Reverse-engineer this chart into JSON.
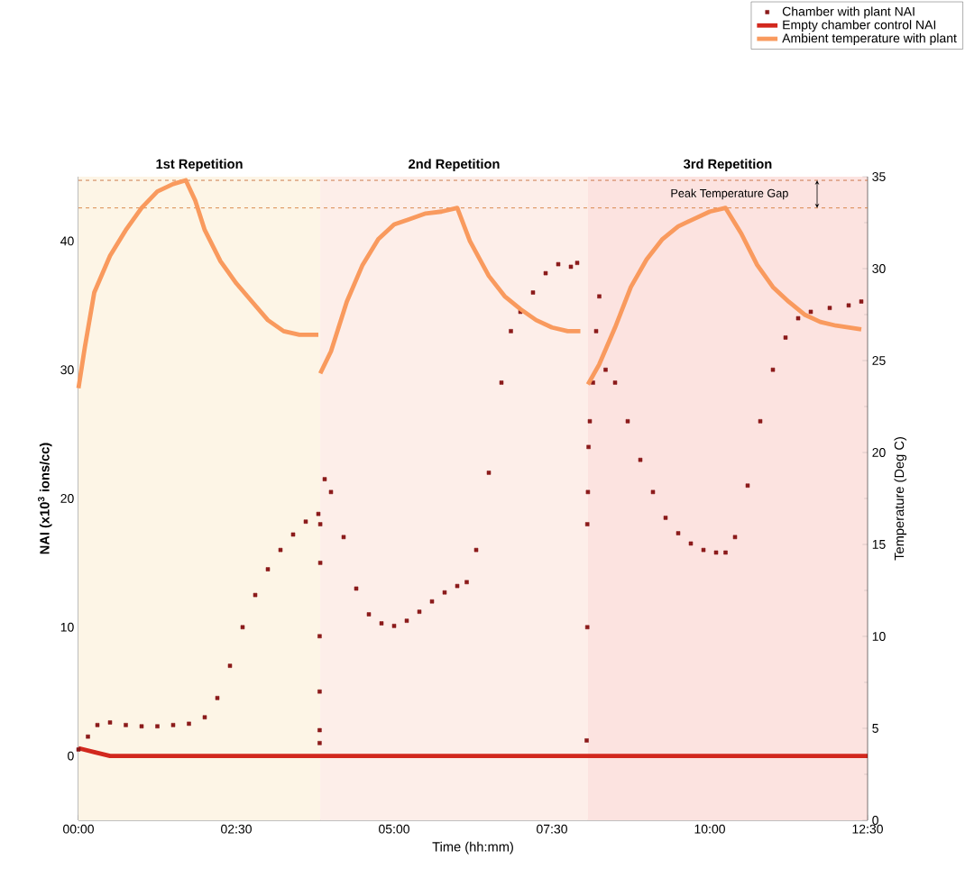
{
  "chart_data": {
    "type": "scatter",
    "xlabel": "Time (hh:mm)",
    "ylabel": "NAI (x10$^{3}$ ions/cc)",
    "y2label": "Temperature (Deg C)",
    "xlim": [
      0,
      12.5
    ],
    "xticks": [
      {
        "value": 0,
        "label": "00:00"
      },
      {
        "value": 2.5,
        "label": "02:30"
      },
      {
        "value": 5,
        "label": "05:00"
      },
      {
        "value": 7.5,
        "label": "07:30"
      },
      {
        "value": 10,
        "label": "10:00"
      },
      {
        "value": 12.5,
        "label": "12:30"
      }
    ],
    "ylim": [
      -5,
      45
    ],
    "yticks": [
      0,
      10,
      20,
      30,
      40
    ],
    "y2lim": [
      0,
      35
    ],
    "y2ticks": [
      0,
      5,
      10,
      15,
      20,
      25,
      30,
      35
    ],
    "legend": "top right",
    "series": [
      {
        "name": "Chamber with plant NAI",
        "color": "#8b1a1a",
        "marker": "square",
        "x": [
          0,
          0.15,
          0.3,
          0.5,
          0.75,
          1.0,
          1.25,
          1.5,
          1.75,
          2.0,
          2.2,
          2.4,
          2.6,
          2.8,
          3.0,
          3.2,
          3.4,
          3.6,
          3.8,
          3.82,
          3.82,
          3.82,
          3.82,
          3.83,
          3.83,
          3.9,
          4.0,
          4.2,
          4.4,
          4.6,
          4.8,
          5.0,
          5.2,
          5.4,
          5.6,
          5.8,
          6.0,
          6.15,
          6.3,
          6.5,
          6.7,
          6.85,
          7.0,
          7.2,
          7.4,
          7.6,
          7.8,
          7.9,
          8.05,
          8.06,
          8.06,
          8.07,
          8.08,
          8.1,
          8.15,
          8.2,
          8.25,
          8.35,
          8.5,
          8.7,
          8.9,
          9.1,
          9.3,
          9.5,
          9.7,
          9.9,
          10.1,
          10.25,
          10.4,
          10.6,
          10.8,
          11.0,
          11.2,
          11.4,
          11.6,
          11.9,
          12.2,
          12.4
        ],
        "values": [
          0.5,
          1.5,
          2.4,
          2.6,
          2.4,
          2.3,
          2.3,
          2.4,
          2.5,
          3.0,
          4.5,
          7,
          10,
          12.5,
          14.5,
          16,
          17.2,
          18.2,
          18.8,
          1,
          2,
          5,
          9.3,
          15,
          18,
          21.5,
          20.5,
          17,
          13,
          11,
          10.3,
          10.1,
          10.5,
          11.2,
          12,
          12.7,
          13.2,
          13.5,
          16,
          22,
          29,
          33,
          34.5,
          36,
          37.5,
          38.2,
          38,
          38.3,
          1.2,
          10,
          18,
          20.5,
          24,
          26,
          29,
          33,
          35.7,
          30,
          29,
          26,
          23,
          20.5,
          18.5,
          17.3,
          16.5,
          16,
          15.8,
          15.8,
          17,
          21,
          26,
          30,
          32.5,
          34,
          34.5,
          34.8,
          35,
          35.3
        ]
      },
      {
        "name": "Empty chamber control NAI",
        "type": "line",
        "marker": "none",
        "color": "#d2281e",
        "x": [
          0,
          0.25,
          0.5,
          12.5
        ],
        "values": [
          0.6,
          0.3,
          0,
          0
        ]
      },
      {
        "name": "Ambient temperature with plant",
        "type": "line",
        "marker": "none",
        "axis": "y2",
        "color": "#f99a5e",
        "x": [
          0,
          0.1,
          0.25,
          0.5,
          0.75,
          1.0,
          1.25,
          1.5,
          1.7,
          1.85,
          2.0,
          2.25,
          2.5,
          2.75,
          3.0,
          3.25,
          3.5,
          3.8,
          3.81,
          3.83,
          4.0,
          4.25,
          4.5,
          4.75,
          5.0,
          5.25,
          5.5,
          5.75,
          6.0,
          6.2,
          6.5,
          6.75,
          7.0,
          7.25,
          7.5,
          7.75,
          7.95,
          8.0,
          8.07,
          8.25,
          8.5,
          8.75,
          9.0,
          9.25,
          9.5,
          9.75,
          10.0,
          10.25,
          10.5,
          10.75,
          11.0,
          11.25,
          11.5,
          11.75,
          12.0,
          12.4
        ],
        "values": [
          23.5,
          25.7,
          28.7,
          30.7,
          32.1,
          33.3,
          34.2,
          34.6,
          34.8,
          33.7,
          32.1,
          30.4,
          29.2,
          28.2,
          27.2,
          26.6,
          26.4,
          26.4,
          null,
          24.3,
          25.5,
          28.2,
          30.2,
          31.6,
          32.4,
          32.7,
          33.0,
          33.1,
          33.3,
          31.5,
          29.6,
          28.5,
          27.8,
          27.2,
          26.8,
          26.6,
          26.6,
          null,
          23.7,
          24.8,
          26.8,
          29.0,
          30.5,
          31.6,
          32.3,
          32.7,
          33.1,
          33.3,
          31.9,
          30.2,
          29.0,
          28.2,
          27.5,
          27.1,
          26.9,
          26.7
        ]
      }
    ],
    "bands": [
      {
        "axis": "x",
        "from": 0,
        "to": 3.83,
        "label": "1st Repetition",
        "color": "#fdf5e6"
      },
      {
        "axis": "x",
        "from": 3.83,
        "to": 8.07,
        "label": "2nd Repetition",
        "color": "#fdeee9"
      },
      {
        "axis": "x",
        "from": 8.07,
        "to": 12.5,
        "label": "3rd Repetition",
        "color": "#fce3e0"
      }
    ],
    "ref_lines": [
      {
        "axis": "y2",
        "value": 34.8,
        "line_style": "dashed",
        "color": "#c0602a"
      },
      {
        "axis": "y2",
        "value": 33.3,
        "line_style": "dashed",
        "color": "#d0702a"
      }
    ],
    "annotations": [
      "Peak Temperature Gap"
    ]
  }
}
